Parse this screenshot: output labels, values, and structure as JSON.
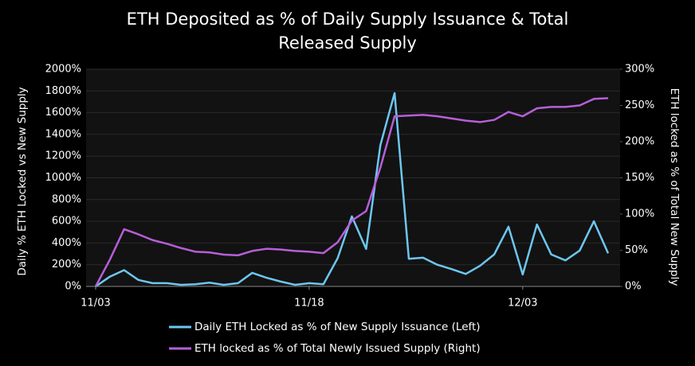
{
  "chart_data": {
    "type": "line",
    "title": [
      "ETH Deposited as % of Daily Supply Issuance & Total",
      "Released Supply"
    ],
    "ylabel": "Daily % ETH Locked vs New Supply",
    "y2label": "ETH locked as % of Total New Supply",
    "categories": [
      "11/03",
      null,
      null,
      null,
      null,
      null,
      null,
      null,
      null,
      null,
      null,
      null,
      null,
      null,
      null,
      "11/18",
      null,
      null,
      null,
      null,
      null,
      null,
      null,
      null,
      null,
      null,
      null,
      null,
      null,
      null,
      "12/03",
      null,
      null,
      null,
      null,
      null,
      null
    ],
    "series": [
      {
        "name": "Daily ETH Locked as % of New Supply Issuance (Left)",
        "color": "#6ec6f0",
        "axis": "y",
        "values": [
          0,
          90,
          150,
          60,
          30,
          30,
          15,
          20,
          35,
          15,
          30,
          125,
          80,
          45,
          15,
          30,
          20,
          260,
          645,
          345,
          1300,
          1780,
          255,
          265,
          200,
          160,
          115,
          190,
          295,
          550,
          110,
          570,
          295,
          240,
          330,
          600,
          305
        ]
      },
      {
        "name": "ETH locked as % of Total Newly Issued Supply (Right)",
        "color": "#b65fd8",
        "axis": "y2",
        "values": [
          0,
          37,
          79,
          72,
          64,
          59,
          53,
          48,
          47,
          44,
          43,
          49,
          52,
          51,
          49,
          48,
          46,
          61,
          91,
          104,
          164,
          235,
          236,
          237,
          235,
          232,
          229,
          227,
          230,
          241,
          235,
          246,
          248,
          248,
          250,
          259,
          260
        ]
      }
    ],
    "ylim": [
      0,
      2000
    ],
    "yticks": [
      {
        "value": 0,
        "label": "0%"
      },
      {
        "value": 200,
        "label": "200%"
      },
      {
        "value": 400,
        "label": "400%"
      },
      {
        "value": 600,
        "label": "600%"
      },
      {
        "value": 800,
        "label": "800%"
      },
      {
        "value": 1000,
        "label": "1000%"
      },
      {
        "value": 1200,
        "label": "1200%"
      },
      {
        "value": 1400,
        "label": "1400%"
      },
      {
        "value": 1600,
        "label": "1600%"
      },
      {
        "value": 1800,
        "label": "1800%"
      },
      {
        "value": 2000,
        "label": "2000%"
      }
    ],
    "y2lim": [
      0,
      300
    ],
    "y2ticks": [
      {
        "value": 0,
        "label": "0%"
      },
      {
        "value": 50,
        "label": "50%"
      },
      {
        "value": 100,
        "label": "100%"
      },
      {
        "value": 150,
        "label": "150%"
      },
      {
        "value": 200,
        "label": "200%"
      },
      {
        "value": 250,
        "label": "250%"
      },
      {
        "value": 300,
        "label": "300%"
      }
    ],
    "grid": true,
    "legend": "bottom"
  }
}
